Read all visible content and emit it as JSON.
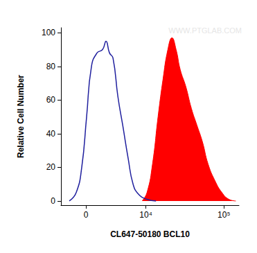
{
  "chart_data": {
    "type": "histogram",
    "x_label": "CL647-50180 BCL10",
    "y_label": "Relative Cell Number",
    "annotations": [
      "WWW.PTGLAB.COM"
    ],
    "xlim": [
      -2850,
      155000
    ],
    "xticks": [
      0,
      {
        "value": 10000,
        "label": "10⁴"
      },
      {
        "value": 100000,
        "label": "10⁵"
      }
    ],
    "ylim": [
      -2.5,
      103
    ],
    "yticks": [
      0,
      20,
      40,
      60,
      80,
      100
    ],
    "grid": false,
    "series": [
      {
        "type": "line",
        "color": "#1f1f9e",
        "x": [
          -1810,
          -1030,
          -437,
          72,
          586,
          1185,
          1815,
          2230,
          2670,
          3140,
          3860,
          4640,
          5650,
          6650,
          7950,
          10300,
          13600
        ],
        "values": [
          0,
          5,
          20,
          50,
          80,
          88,
          90,
          95,
          88,
          85,
          62,
          45,
          25,
          10,
          4,
          1,
          0
        ]
      },
      {
        "type": "area",
        "color": "#ff0000",
        "x": [
          8890,
          10350,
          12250,
          14470,
          16740,
          19370,
          21900,
          24730,
          27970,
          32900,
          38740,
          45540,
          53570,
          63000,
          77080,
          94320,
          115500,
          141500
        ],
        "values": [
          0,
          5,
          22,
          50,
          72,
          90,
          97,
          90,
          78,
          68,
          55,
          45,
          35,
          22,
          12,
          5,
          1,
          0
        ]
      }
    ]
  }
}
